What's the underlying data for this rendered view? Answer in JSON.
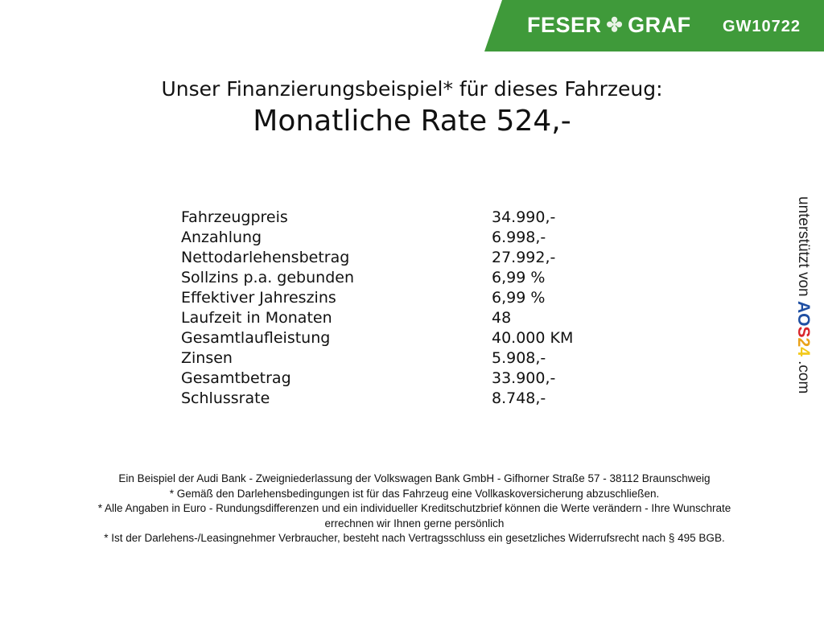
{
  "header": {
    "brand_left": "FESER",
    "brand_right": "GRAF",
    "brand_color": "#3f9a3a",
    "vehicle_code": "GW10722",
    "logo_icon": "clover-icon"
  },
  "subtitle": "Unser Finanzierungsbeispiel* für dieses Fahrzeug:",
  "title": "Monatliche Rate 524,-",
  "rows": [
    {
      "label": "Fahrzeugpreis",
      "value": "34.990,-"
    },
    {
      "label": "Anzahlung",
      "value": "6.998,-"
    },
    {
      "label": "Nettodarlehensbetrag",
      "value": "27.992,-"
    },
    {
      "label": "Sollzins p.a. gebunden",
      "value": "6,99 %"
    },
    {
      "label": "Effektiver Jahreszins",
      "value": "6,99 %"
    },
    {
      "label": "Laufzeit in Monaten",
      "value": "48"
    },
    {
      "label": "Gesamtlaufleistung",
      "value": "40.000 KM"
    },
    {
      "label": "Zinsen",
      "value": "5.908,-"
    },
    {
      "label": "Gesamtbetrag",
      "value": "33.900,-"
    },
    {
      "label": "Schlussrate",
      "value": "8.748,-"
    }
  ],
  "sidebar": {
    "supported_by": "unterstützt von",
    "logo": "AOS24",
    "domain": ".com"
  },
  "footer": [
    "Ein Beispiel der Audi Bank - Zweigniederlassung der Volkswagen Bank GmbH - Gifhorner Straße 57 - 38112 Braunschweig",
    "* Gemäß den Darlehensbedingungen ist für das Fahrzeug eine Vollkaskoversicherung abzuschließen.",
    "* Alle Angaben in Euro - Rundungsdifferenzen und ein individueller Kreditschutzbrief können die Werte verändern - Ihre Wunschrate errechnen wir Ihnen gerne persönlich",
    "* Ist der Darlehens-/Leasingnehmer Verbraucher, besteht nach Vertragsschluss ein gesetzliches Widerrufsrecht nach § 495 BGB."
  ]
}
